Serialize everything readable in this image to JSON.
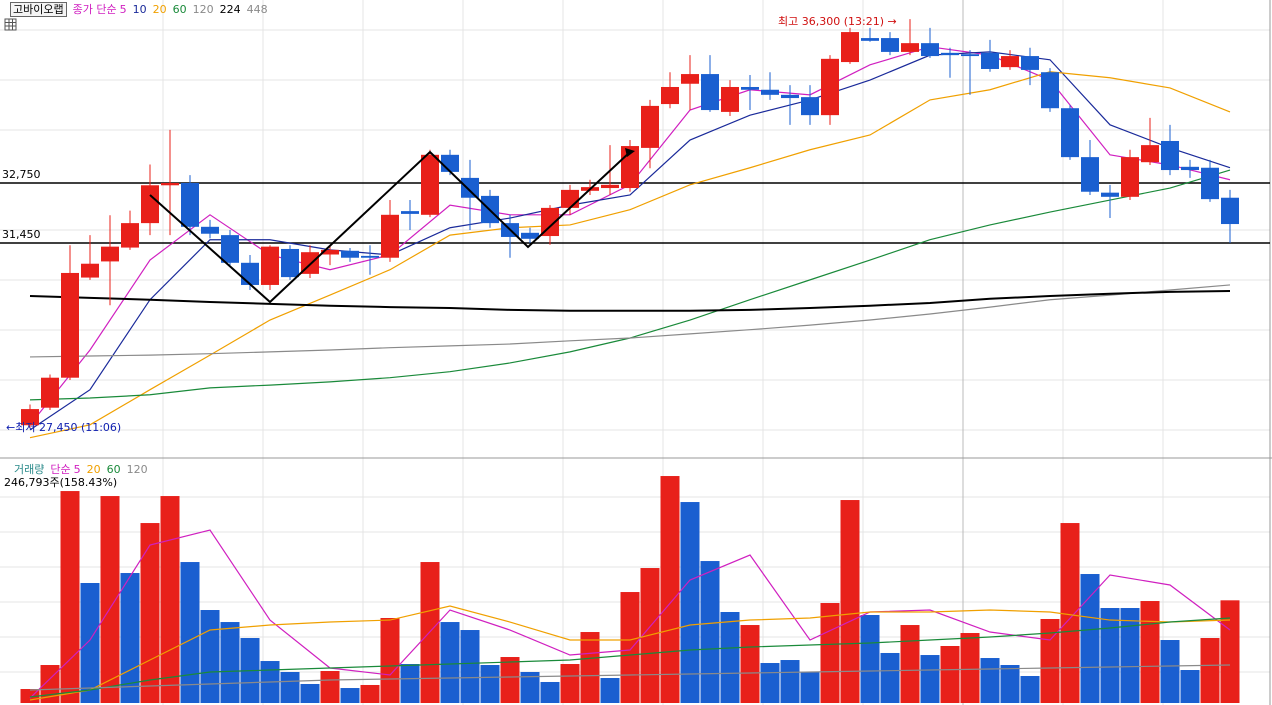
{
  "chart_data": [
    {
      "type": "candlestick",
      "title": "고바이오랩",
      "legend_label": "종가 단순",
      "up_color": "#e8201a",
      "down_color": "#1a5fd0",
      "ylim": [
        26790,
        36715
      ],
      "open": [
        27500,
        27880,
        28530,
        30700,
        31050,
        31350,
        31880,
        32700,
        32750,
        31800,
        31620,
        31020,
        30540,
        31320,
        30780,
        31200,
        31280,
        31170,
        31130,
        32140,
        32060,
        33360,
        32860,
        32470,
        31880,
        31670,
        31600,
        32210,
        32580,
        32640,
        32640,
        33510,
        34460,
        34900,
        35110,
        34290,
        34830,
        34770,
        34660,
        34610,
        34220,
        35370,
        35890,
        35890,
        35590,
        35780,
        35570,
        35540,
        35570,
        35260,
        35500,
        35150,
        34370,
        33310,
        32540,
        32450,
        33200,
        33660,
        33100,
        33080,
        32430
      ],
      "high": [
        27950,
        28600,
        31400,
        31620,
        32050,
        32150,
        33150,
        33900,
        32920,
        31950,
        31730,
        31190,
        31400,
        31400,
        31400,
        31400,
        31340,
        31400,
        32380,
        32380,
        33470,
        33470,
        33250,
        32600,
        32060,
        31780,
        32270,
        32710,
        32820,
        33570,
        33680,
        34550,
        35150,
        35520,
        35520,
        34980,
        35090,
        35150,
        34870,
        34870,
        35520,
        36110,
        36110,
        36020,
        36300,
        36110,
        35680,
        35630,
        35850,
        35630,
        35680,
        35240,
        34440,
        33680,
        32710,
        33470,
        34160,
        34010,
        33250,
        33250,
        32600
      ],
      "low": [
        27450,
        27830,
        28480,
        30650,
        30100,
        31300,
        31620,
        31620,
        31620,
        31550,
        30970,
        30430,
        30430,
        30650,
        30690,
        30970,
        31040,
        30760,
        31040,
        31730,
        32010,
        32920,
        31730,
        31780,
        31130,
        31450,
        31410,
        32060,
        32490,
        32490,
        32560,
        33070,
        34370,
        34330,
        34290,
        34200,
        34330,
        34550,
        34010,
        34010,
        34010,
        35330,
        35810,
        35520,
        35520,
        35460,
        35030,
        34660,
        35160,
        35200,
        34870,
        34290,
        33250,
        32490,
        31990,
        32380,
        33140,
        32920,
        32860,
        32340,
        31450
      ],
      "close": [
        27850,
        28530,
        30800,
        31000,
        31370,
        31880,
        32700,
        32750,
        31800,
        31650,
        31020,
        30540,
        31370,
        30710,
        31250,
        31300,
        31130,
        31130,
        32060,
        32080,
        33360,
        32990,
        32430,
        31880,
        31580,
        31540,
        32210,
        32600,
        32660,
        32710,
        33550,
        34420,
        34830,
        35110,
        34330,
        34830,
        34770,
        34660,
        34590,
        34220,
        35440,
        36020,
        35830,
        35590,
        35780,
        35500,
        35520,
        35500,
        35220,
        35500,
        35200,
        34370,
        33310,
        32560,
        32450,
        33310,
        33570,
        33030,
        33030,
        32400,
        31860
      ],
      "ma_x": [
        0,
        3,
        6,
        9,
        12,
        15,
        18,
        21,
        24,
        27,
        30,
        33,
        36,
        39,
        42,
        45,
        48,
        51,
        54,
        57,
        60
      ],
      "ma": [
        {
          "name": "5",
          "color": "#d020c0",
          "values": [
            27510,
            29130,
            31080,
            32060,
            31190,
            30870,
            31190,
            32270,
            32060,
            32060,
            32710,
            34330,
            34770,
            34660,
            35310,
            35700,
            35520,
            34980,
            33360,
            33140,
            32820
          ]
        },
        {
          "name": "10",
          "color": "#1a2a9a",
          "values": [
            27400,
            28270,
            30220,
            31520,
            31520,
            31300,
            31190,
            31780,
            31990,
            32270,
            32490,
            33680,
            34220,
            34550,
            34980,
            35520,
            35590,
            35420,
            34010,
            33510,
            33080
          ]
        },
        {
          "name": "20",
          "color": "#f0a000",
          "values": [
            27230,
            27510,
            28270,
            29020,
            29780,
            30320,
            30870,
            31620,
            31780,
            31840,
            32170,
            32710,
            33080,
            33470,
            33790,
            34550,
            34770,
            35160,
            35030,
            34810,
            34290
          ]
        },
        {
          "name": "60",
          "color": "#1a8a3a",
          "values": [
            28050,
            28090,
            28160,
            28310,
            28370,
            28440,
            28530,
            28660,
            28850,
            29090,
            29390,
            29780,
            30220,
            30650,
            31080,
            31520,
            31840,
            32120,
            32380,
            32640,
            33030
          ]
        },
        {
          "name": "120",
          "color": "#8a8a8a",
          "values": [
            28980,
            29000,
            29020,
            29050,
            29090,
            29130,
            29180,
            29220,
            29260,
            29330,
            29390,
            29480,
            29570,
            29670,
            29780,
            29910,
            30060,
            30220,
            30320,
            30430,
            30540
          ]
        },
        {
          "name": "224",
          "color": "#000000",
          "values": [
            30300,
            30260,
            30220,
            30170,
            30130,
            30090,
            30060,
            30040,
            30000,
            29980,
            29980,
            29980,
            30000,
            30040,
            30090,
            30150,
            30240,
            30300,
            30350,
            30390,
            30410
          ]
        },
        {
          "name": "448",
          "color": "#8a8a8a",
          "values": [
            null,
            null,
            null,
            null,
            null,
            null,
            null,
            null,
            null,
            null,
            null,
            null,
            null,
            null,
            null,
            null,
            null,
            null,
            null,
            null,
            null
          ]
        }
      ],
      "hlines": [
        {
          "value": 32750,
          "label": "32,750"
        },
        {
          "value": 31450,
          "label": "31,450"
        }
      ],
      "high_label": "최고 36,300 (13:21) →",
      "low_label": "←최저 27,450 (11:06)"
    },
    {
      "type": "bar",
      "title": "거래량",
      "legend_label": "단순",
      "info": "246,793주(158.43%)",
      "ylim": [
        0,
        560000
      ],
      "values": [
        33600,
        91300,
        509400,
        288400,
        497400,
        312400,
        432500,
        497400,
        338800,
        223500,
        194600,
        156200,
        100900,
        74500,
        45700,
        76900,
        36000,
        43300,
        204300,
        93700,
        338800,
        194600,
        175400,
        91300,
        110500,
        74500,
        50500,
        93700,
        170600,
        60100,
        266700,
        324400,
        545500,
        483000,
        341200,
        218700,
        187400,
        96100,
        103300,
        74500,
        240300,
        487800,
        211500,
        120200,
        187400,
        115300,
        137000,
        168200,
        108100,
        91300,
        64900,
        201900,
        432500,
        310000,
        228300,
        228300,
        245100,
        151400,
        79300,
        156200,
        246793
      ],
      "colors": [
        "#e8201a",
        "#e8201a",
        "#e8201a",
        "#1a5fd0",
        "#e8201a",
        "#1a5fd0",
        "#e8201a",
        "#e8201a",
        "#1a5fd0",
        "#1a5fd0",
        "#1a5fd0",
        "#1a5fd0",
        "#1a5fd0",
        "#1a5fd0",
        "#1a5fd0",
        "#e8201a",
        "#1a5fd0",
        "#e8201a",
        "#e8201a",
        "#1a5fd0",
        "#e8201a",
        "#1a5fd0",
        "#1a5fd0",
        "#1a5fd0",
        "#e8201a",
        "#1a5fd0",
        "#1a5fd0",
        "#e8201a",
        "#e8201a",
        "#1a5fd0",
        "#e8201a",
        "#e8201a",
        "#e8201a",
        "#1a5fd0",
        "#1a5fd0",
        "#1a5fd0",
        "#e8201a",
        "#1a5fd0",
        "#1a5fd0",
        "#1a5fd0",
        "#e8201a",
        "#e8201a",
        "#1a5fd0",
        "#1a5fd0",
        "#e8201a",
        "#1a5fd0",
        "#e8201a",
        "#e8201a",
        "#1a5fd0",
        "#1a5fd0",
        "#1a5fd0",
        "#e8201a",
        "#e8201a",
        "#1a5fd0",
        "#1a5fd0",
        "#1a5fd0",
        "#e8201a",
        "#1a5fd0",
        "#1a5fd0",
        "#e8201a",
        "#e8201a"
      ],
      "ma_x": [
        0,
        3,
        6,
        9,
        12,
        15,
        18,
        21,
        24,
        27,
        30,
        33,
        36,
        39,
        42,
        45,
        48,
        51,
        54,
        57,
        60
      ],
      "title_color": "#2a8a8a",
      "ma": [
        {
          "name": "5",
          "color": "#d020c0",
          "values": [
            12000,
            151400,
            379700,
            415700,
            199400,
            84100,
            67300,
            223500,
            175400,
            115300,
            127400,
            295600,
            355600,
            151400,
            218700,
            223500,
            170600,
            151400,
            307600,
            283600,
            175400
          ]
        },
        {
          "name": "20",
          "color": "#f0a000",
          "values": [
            7200,
            31200,
            103300,
            175400,
            187400,
            194600,
            199400,
            233100,
            194600,
            151400,
            151400,
            187400,
            199400,
            204300,
            218700,
            218700,
            223500,
            218700,
            199400,
            194600,
            199400
          ]
        },
        {
          "name": "60",
          "color": "#1a8a3a",
          "values": [
            14400,
            31200,
            55300,
            74500,
            79300,
            84100,
            88900,
            93700,
            98500,
            103300,
            115300,
            127400,
            134600,
            139400,
            144200,
            151400,
            158600,
            168200,
            180200,
            194600,
            204300
          ]
        },
        {
          "name": "120",
          "color": "#8a8a8a",
          "values": [
            31200,
            36000,
            40900,
            45700,
            50500,
            55300,
            57700,
            60100,
            62500,
            64900,
            67300,
            69700,
            72100,
            74500,
            76900,
            79300,
            81700,
            84100,
            86500,
            88900,
            91300
          ]
        }
      ]
    }
  ]
}
